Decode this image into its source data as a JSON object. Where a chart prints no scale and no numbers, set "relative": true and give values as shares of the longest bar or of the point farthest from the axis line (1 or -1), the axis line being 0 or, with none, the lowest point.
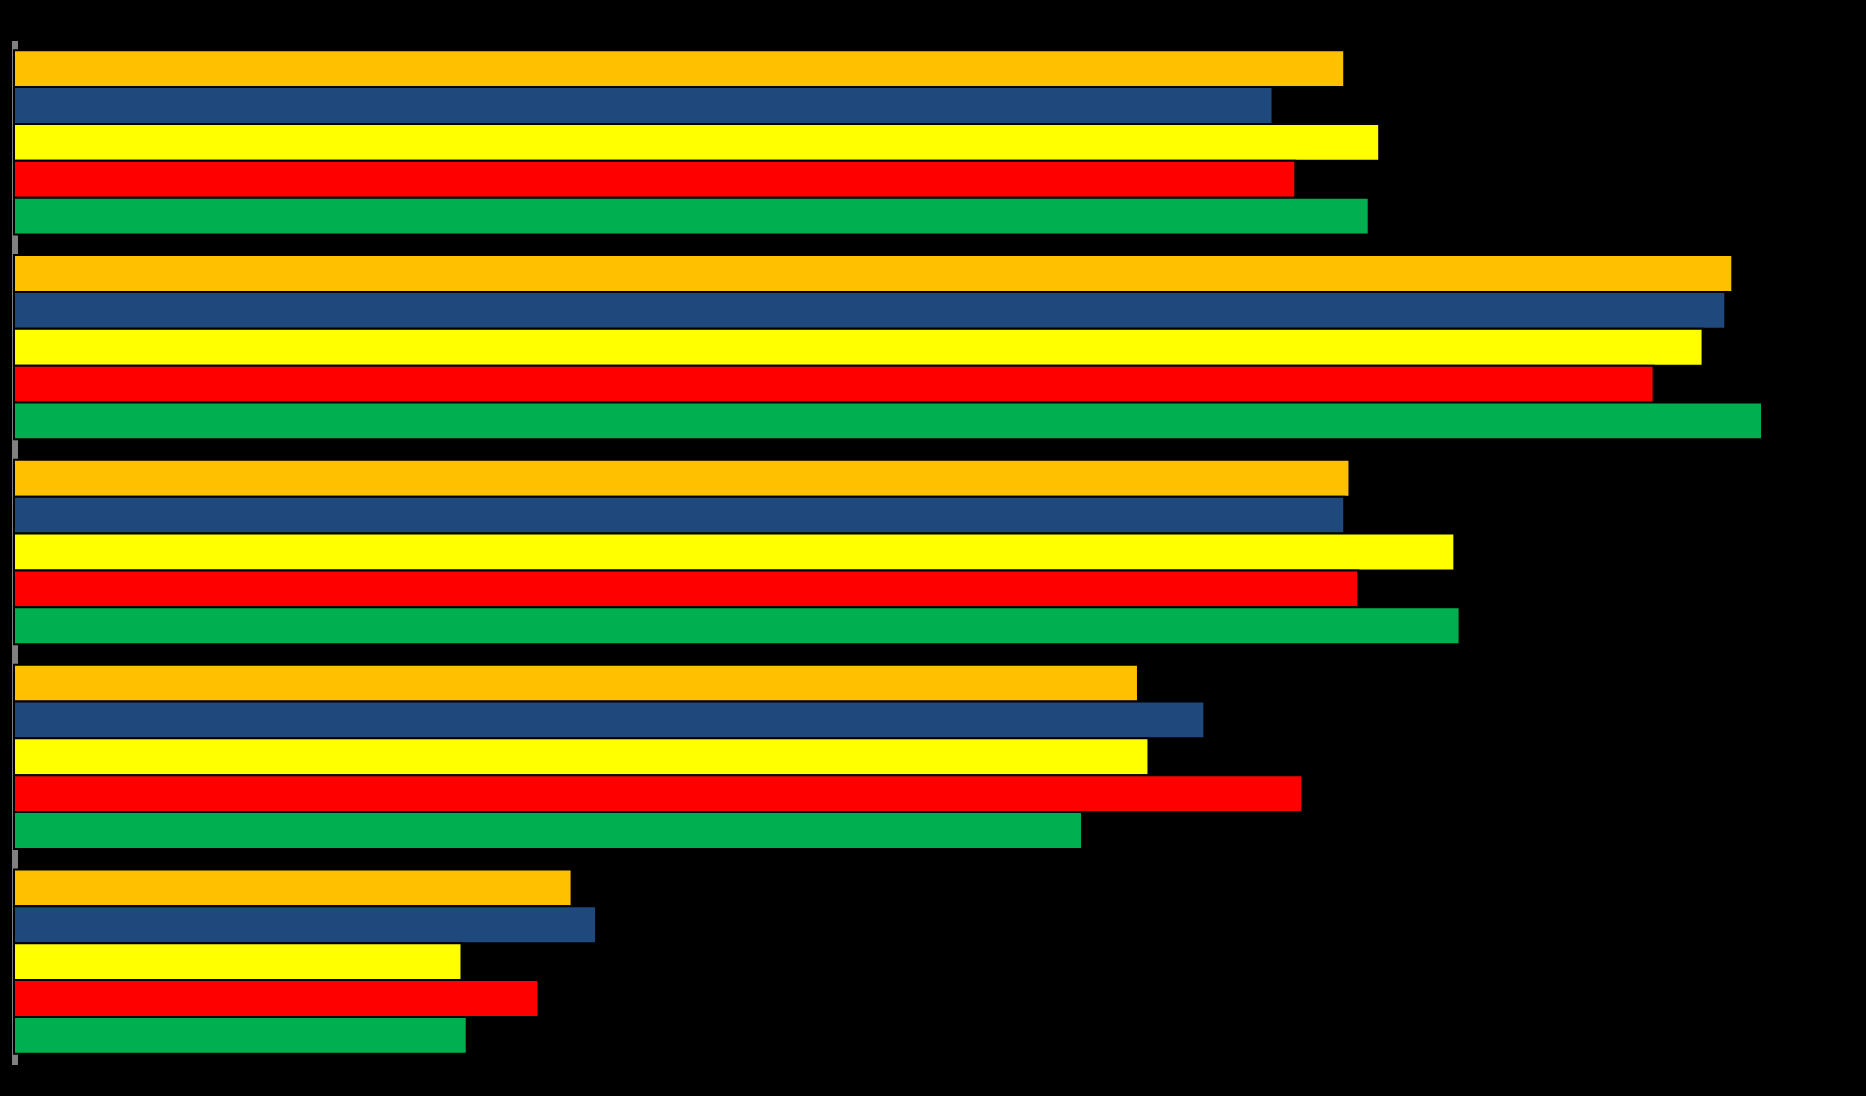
{
  "chart_data": {
    "type": "bar",
    "orientation": "horizontal",
    "relative": true,
    "categories": [
      null,
      null,
      null,
      null,
      null
    ],
    "series": [
      {
        "color": "#ffc000",
        "values": [
          0.761,
          0.983,
          0.764,
          0.643,
          0.319
        ]
      },
      {
        "color": "#1f497d",
        "values": [
          0.72,
          0.979,
          0.761,
          0.681,
          0.333
        ]
      },
      {
        "color": "#ffff00",
        "values": [
          0.781,
          0.966,
          0.824,
          0.649,
          0.256
        ]
      },
      {
        "color": "#ff0000",
        "values": [
          0.733,
          0.938,
          0.769,
          0.737,
          0.3
        ]
      },
      {
        "color": "#00b050",
        "values": [
          0.775,
          1,
          0.827,
          0.611,
          0.259
        ]
      }
    ]
  }
}
